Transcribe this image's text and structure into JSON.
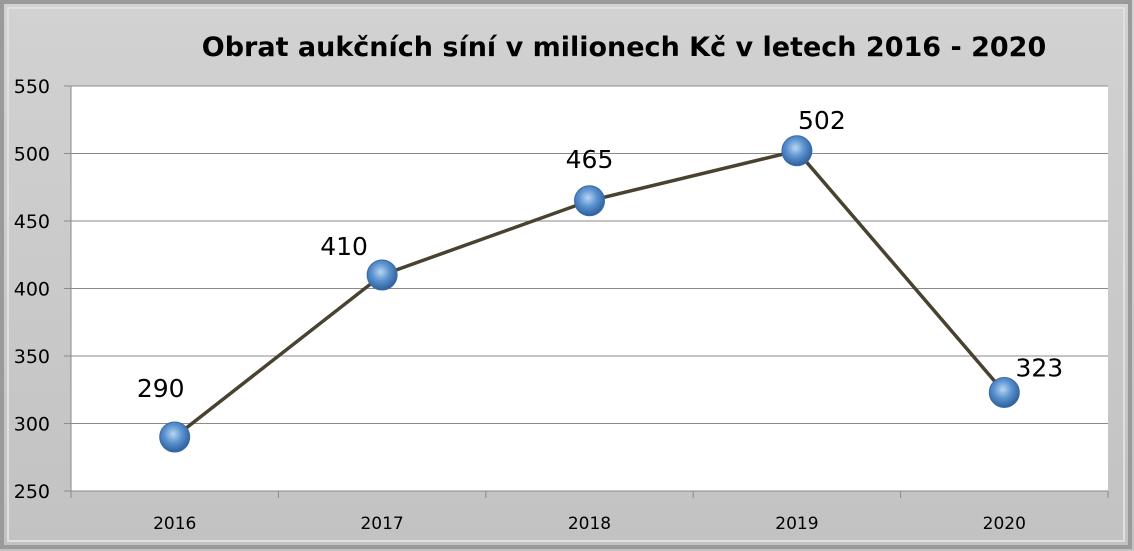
{
  "chart_data": {
    "type": "line",
    "title": "Obrat aukčních síní v milionech Kč v letech 2016 - 2020",
    "categories": [
      "2016",
      "2017",
      "2018",
      "2019",
      "2020"
    ],
    "values": [
      290,
      410,
      465,
      502,
      323
    ],
    "data_labels": [
      "290",
      "410",
      "465",
      "502",
      "323"
    ],
    "xlabel": "",
    "ylabel": "",
    "ylim": [
      250,
      550
    ],
    "yticks": [
      "250",
      "300",
      "350",
      "400",
      "450",
      "500",
      "550"
    ],
    "grid": true,
    "legend": "none",
    "colors": {
      "line": "#4a4230",
      "marker": "#4f86c6",
      "background": "#c8c8c8",
      "plot": "#ffffff"
    }
  }
}
